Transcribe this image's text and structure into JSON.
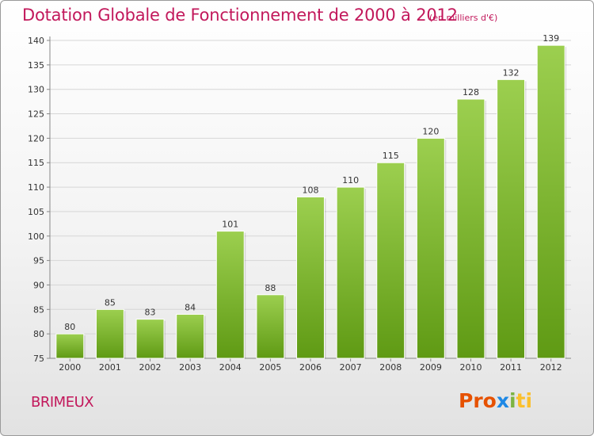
{
  "title": "Dotation Globale de Fonctionnement de 2000 à 2012",
  "subtitle": "(en milliers d'€)",
  "commune": "BRIMEUX",
  "logo": {
    "p1": "Pro",
    "p2": "x",
    "p3": "i",
    "p4": "ti"
  },
  "colors": {
    "accent": "#c2185b",
    "bar_top": "#9ccf4f",
    "bar_bottom": "#5f9a14"
  },
  "chart_data": {
    "type": "bar",
    "categories": [
      "2000",
      "2001",
      "2002",
      "2003",
      "2004",
      "2005",
      "2006",
      "2007",
      "2008",
      "2009",
      "2010",
      "2011",
      "2012"
    ],
    "values": [
      80,
      85,
      83,
      84,
      101,
      88,
      108,
      110,
      115,
      120,
      128,
      132,
      139
    ],
    "title": "Dotation Globale de Fonctionnement de 2000 à 2012",
    "subtitle": "(en milliers d'€)",
    "xlabel": "",
    "ylabel": "",
    "ylim": [
      75,
      140
    ],
    "yticks": [
      75,
      80,
      85,
      90,
      95,
      100,
      105,
      110,
      115,
      120,
      125,
      130,
      135,
      140
    ],
    "grid": true,
    "legend": "none"
  }
}
